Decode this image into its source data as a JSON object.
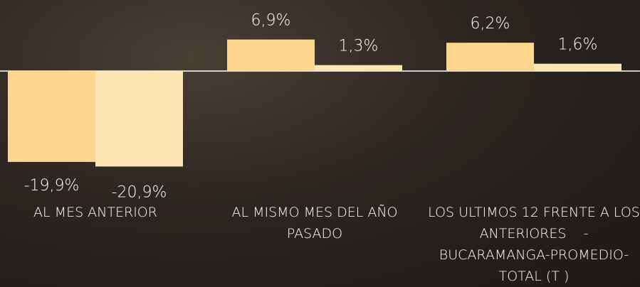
{
  "chart_data": {
    "type": "bar",
    "categories": [
      "AL MES ANTERIOR",
      "AL MISMO MES DEL AÑO PASADO",
      "LOS ULTIMOS 12 FRENTE A LOS ANTERIORES    - BUCARAMANGA-PROMEDIO-TOTAL (T )"
    ],
    "series": [
      {
        "color": "#fcd68c",
        "values": [
          -19.9,
          6.9,
          6.2
        ],
        "value_labels": [
          "-19,9%",
          "6,9%",
          "6,2%"
        ]
      },
      {
        "color": "#fde6b4",
        "values": [
          -20.9,
          1.3,
          1.6
        ],
        "value_labels": [
          "-20,9%",
          "1,3%",
          "1,6%"
        ]
      }
    ]
  }
}
